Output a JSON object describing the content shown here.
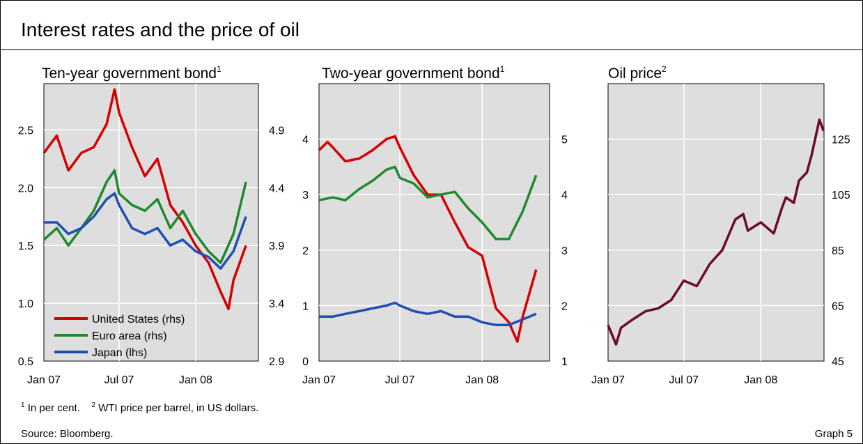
{
  "header": {
    "title": "Interest rates and the price of oil"
  },
  "footer": {
    "note1_mark": "1",
    "note1_text": "In per cent.",
    "note2_mark": "2",
    "note2_text": "WTI price per barrel, in US dollars.",
    "source": "Source: Bloomberg.",
    "graph_label": "Graph 5"
  },
  "colors": {
    "us": "#d40000",
    "euro": "#1e8a2e",
    "japan": "#1f4fb0",
    "oil": "#6b0a2a",
    "plot_bg": "#dedede"
  },
  "chart_data": [
    {
      "type": "line",
      "title": "Ten-year government bond",
      "title_note": "1",
      "x_ticks": [
        "Jan 07",
        "Jul 07",
        "Jan 08"
      ],
      "left_axis": {
        "ticks": [
          "0.5",
          "1.0",
          "1.5",
          "2.0",
          "2.5"
        ],
        "ylim": [
          0.5,
          2.9
        ]
      },
      "right_axis": {
        "ticks": [
          "2.9",
          "3.4",
          "3.9",
          "4.4",
          "4.9"
        ],
        "ylim": [
          2.9,
          5.3
        ]
      },
      "legend": [
        "United States (rhs)",
        "Euro area (rhs)",
        "Japan (lhs)"
      ],
      "series": [
        {
          "name": "United States (rhs)",
          "axis": "right",
          "color": "us",
          "x": [
            "2007-01-01",
            "2007-02-01",
            "2007-03-01",
            "2007-04-01",
            "2007-05-01",
            "2007-06-01",
            "2007-06-20",
            "2007-07-01",
            "2007-08-01",
            "2007-09-01",
            "2007-10-01",
            "2007-11-01",
            "2007-12-01",
            "2008-01-01",
            "2008-02-01",
            "2008-03-01",
            "2008-03-20",
            "2008-04-01",
            "2008-05-01"
          ],
          "values": [
            4.7,
            4.85,
            4.55,
            4.7,
            4.75,
            4.95,
            5.25,
            5.05,
            4.75,
            4.5,
            4.65,
            4.25,
            4.1,
            3.9,
            3.75,
            3.5,
            3.35,
            3.6,
            3.9
          ]
        },
        {
          "name": "Euro area (rhs)",
          "axis": "right",
          "color": "euro",
          "x": [
            "2007-01-01",
            "2007-02-01",
            "2007-03-01",
            "2007-04-01",
            "2007-05-01",
            "2007-06-01",
            "2007-06-20",
            "2007-07-01",
            "2007-08-01",
            "2007-09-01",
            "2007-10-01",
            "2007-11-01",
            "2007-12-01",
            "2008-01-01",
            "2008-02-01",
            "2008-03-01",
            "2008-04-01",
            "2008-05-01"
          ],
          "values": [
            3.95,
            4.05,
            3.9,
            4.05,
            4.2,
            4.45,
            4.55,
            4.35,
            4.25,
            4.2,
            4.3,
            4.05,
            4.2,
            4.0,
            3.85,
            3.75,
            4.0,
            4.45
          ]
        },
        {
          "name": "Japan (lhs)",
          "axis": "left",
          "color": "japan",
          "x": [
            "2007-01-01",
            "2007-02-01",
            "2007-03-01",
            "2007-04-01",
            "2007-05-01",
            "2007-06-01",
            "2007-06-20",
            "2007-07-01",
            "2007-08-01",
            "2007-09-01",
            "2007-10-01",
            "2007-11-01",
            "2007-12-01",
            "2008-01-01",
            "2008-02-01",
            "2008-03-01",
            "2008-04-01",
            "2008-05-01"
          ],
          "values": [
            1.7,
            1.7,
            1.6,
            1.65,
            1.75,
            1.9,
            1.95,
            1.85,
            1.65,
            1.6,
            1.65,
            1.5,
            1.55,
            1.45,
            1.4,
            1.3,
            1.45,
            1.75
          ]
        }
      ]
    },
    {
      "type": "line",
      "title": "Two-year government bond",
      "title_note": "1",
      "x_ticks": [
        "Jan 07",
        "Jul 07",
        "Jan 08"
      ],
      "left_axis": {
        "ticks": [
          "0",
          "1",
          "2",
          "3",
          "4"
        ],
        "ylim": [
          0,
          5
        ]
      },
      "right_axis": {
        "ticks": [
          "1",
          "2",
          "3",
          "4",
          "5"
        ],
        "ylim": [
          1,
          6
        ]
      },
      "series": [
        {
          "name": "United States",
          "axis": "right",
          "color": "us",
          "x": [
            "2007-01-01",
            "2007-01-20",
            "2007-02-01",
            "2007-03-01",
            "2007-04-01",
            "2007-05-01",
            "2007-06-01",
            "2007-06-20",
            "2007-07-01",
            "2007-08-01",
            "2007-09-01",
            "2007-10-01",
            "2007-11-01",
            "2007-12-01",
            "2008-01-01",
            "2008-02-01",
            "2008-03-01",
            "2008-03-20",
            "2008-04-01",
            "2008-05-01"
          ],
          "values": [
            4.8,
            4.95,
            4.85,
            4.6,
            4.65,
            4.8,
            5.0,
            5.05,
            4.85,
            4.35,
            4.0,
            4.0,
            3.5,
            3.05,
            2.9,
            1.95,
            1.7,
            1.35,
            1.8,
            2.65
          ]
        },
        {
          "name": "Euro area",
          "axis": "right",
          "color": "euro",
          "x": [
            "2007-01-01",
            "2007-02-01",
            "2007-03-01",
            "2007-04-01",
            "2007-05-01",
            "2007-06-01",
            "2007-06-20",
            "2007-07-01",
            "2007-08-01",
            "2007-09-01",
            "2007-10-01",
            "2007-11-01",
            "2007-12-01",
            "2008-01-01",
            "2008-02-01",
            "2008-03-01",
            "2008-04-01",
            "2008-05-01"
          ],
          "values": [
            3.9,
            3.95,
            3.9,
            4.1,
            4.25,
            4.45,
            4.5,
            4.3,
            4.2,
            3.95,
            4.0,
            4.05,
            3.75,
            3.5,
            3.2,
            3.2,
            3.7,
            4.35
          ]
        },
        {
          "name": "Japan",
          "axis": "left",
          "color": "japan",
          "x": [
            "2007-01-01",
            "2007-02-01",
            "2007-03-01",
            "2007-04-01",
            "2007-05-01",
            "2007-06-01",
            "2007-06-20",
            "2007-07-01",
            "2007-08-01",
            "2007-09-01",
            "2007-10-01",
            "2007-11-01",
            "2007-12-01",
            "2008-01-01",
            "2008-02-01",
            "2008-03-01",
            "2008-04-01",
            "2008-05-01"
          ],
          "values": [
            0.8,
            0.8,
            0.85,
            0.9,
            0.95,
            1.0,
            1.05,
            1.0,
            0.9,
            0.85,
            0.9,
            0.8,
            0.8,
            0.7,
            0.65,
            0.65,
            0.75,
            0.85
          ]
        }
      ]
    },
    {
      "type": "line",
      "title": "Oil price",
      "title_note": "2",
      "x_ticks": [
        "Jan 07",
        "Jul 07",
        "Jan 08"
      ],
      "right_axis": {
        "ticks": [
          "45",
          "65",
          "85",
          "105",
          "125"
        ],
        "ylim": [
          45,
          145
        ]
      },
      "series": [
        {
          "name": "Oil price",
          "axis": "right",
          "color": "oil",
          "x": [
            "2007-01-01",
            "2007-01-20",
            "2007-02-01",
            "2007-03-01",
            "2007-04-01",
            "2007-05-01",
            "2007-06-01",
            "2007-07-01",
            "2007-08-01",
            "2007-09-01",
            "2007-10-01",
            "2007-11-01",
            "2007-11-20",
            "2007-12-01",
            "2008-01-01",
            "2008-02-01",
            "2008-02-20",
            "2008-03-01",
            "2008-03-20",
            "2008-04-01",
            "2008-04-20",
            "2008-05-01",
            "2008-05-20",
            "2008-05-30"
          ],
          "values": [
            58,
            51,
            57,
            60,
            63,
            64,
            67,
            74,
            72,
            80,
            85,
            96,
            98,
            92,
            95,
            91,
            100,
            104,
            102,
            110,
            113,
            119,
            132,
            128
          ]
        }
      ]
    }
  ]
}
